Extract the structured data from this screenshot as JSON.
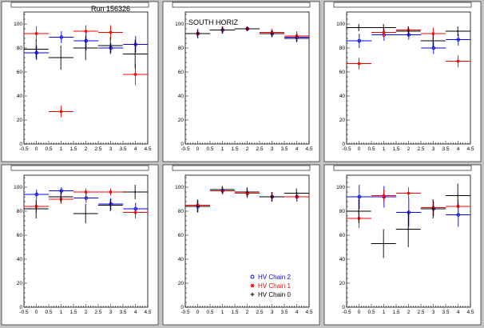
{
  "colors": {
    "chain2": "#0000ff",
    "chain1": "#ff0000",
    "chain0": "#000000",
    "pad": "#ffffff",
    "frame": "#c4c4c4"
  },
  "legend": [
    {
      "label": "HV Chain 2",
      "color": "#0000ff",
      "marker": "circle"
    },
    {
      "label": "HV Chain 1",
      "color": "#ff0000",
      "marker": "star"
    },
    {
      "label": "HV Chain 0",
      "color": "#000000",
      "marker": "plus"
    }
  ],
  "chart_data": [
    {
      "type": "scatter",
      "title": "",
      "annotation": "Run 156326",
      "xlim": [
        -0.5,
        4.5
      ],
      "ylim": [
        0,
        110
      ],
      "xticks": [
        "-0.5",
        "0",
        "0.5",
        "1",
        "1.5",
        "2",
        "2.5",
        "3",
        "3.5",
        "4",
        "4.5"
      ],
      "yticks": [
        "0",
        "20",
        "40",
        "60",
        "80",
        "100"
      ],
      "series": [
        {
          "name": "HV Chain 2",
          "x": [
            0,
            1,
            2,
            3,
            4
          ],
          "y": [
            76,
            89,
            86,
            80,
            83
          ],
          "yerr": [
            6,
            5,
            8,
            4,
            7
          ]
        },
        {
          "name": "HV Chain 1",
          "x": [
            0,
            1,
            2,
            3,
            4
          ],
          "y": [
            92,
            27,
            94,
            93,
            58
          ],
          "yerr": [
            6,
            5,
            5,
            6,
            9
          ]
        },
        {
          "name": "HV Chain 0",
          "x": [
            0,
            1,
            2,
            3,
            4
          ],
          "y": [
            79,
            72,
            80,
            82,
            75
          ],
          "yerr": [
            8,
            10,
            10,
            7,
            12
          ]
        }
      ]
    },
    {
      "type": "scatter",
      "title": "",
      "annotation": "SOUTH HORIZ",
      "xlim": [
        -0.5,
        4.5
      ],
      "ylim": [
        0,
        110
      ],
      "xticks": [
        "-0.5",
        "0",
        "0.5",
        "1",
        "1.5",
        "2",
        "2.5",
        "3",
        "3.5",
        "4",
        "4.5"
      ],
      "yticks": [
        "0",
        "20",
        "40",
        "60",
        "80",
        "100"
      ],
      "series": [
        {
          "name": "HV Chain 2",
          "x": [
            0,
            1,
            2,
            3,
            4
          ],
          "y": [
            92,
            95,
            96,
            92,
            89
          ],
          "yerr": [
            4,
            3,
            2,
            3,
            4
          ]
        },
        {
          "name": "HV Chain 1",
          "x": [
            0,
            1,
            2,
            3,
            4
          ],
          "y": [
            92,
            95,
            96,
            93,
            90
          ],
          "yerr": [
            4,
            3,
            2,
            3,
            4
          ]
        },
        {
          "name": "HV Chain 0",
          "x": [
            0,
            1,
            2,
            3,
            4
          ],
          "y": [
            92,
            95,
            96,
            92,
            88
          ],
          "yerr": [
            3,
            3,
            2,
            3,
            3
          ]
        }
      ]
    },
    {
      "type": "scatter",
      "title": "",
      "annotation": "",
      "xlim": [
        -0.5,
        4.5
      ],
      "ylim": [
        0,
        110
      ],
      "xticks": [
        "-0.5",
        "0",
        "0.5",
        "1",
        "1.5",
        "2",
        "2.5",
        "3",
        "3.5",
        "4",
        "4.5"
      ],
      "yticks": [
        "0",
        "20",
        "40",
        "60",
        "80",
        "100"
      ],
      "series": [
        {
          "name": "HV Chain 2",
          "x": [
            0,
            1,
            2,
            3,
            4
          ],
          "y": [
            86,
            91,
            91,
            80,
            87
          ],
          "yerr": [
            6,
            5,
            4,
            5,
            5
          ]
        },
        {
          "name": "HV Chain 1",
          "x": [
            0,
            1,
            2,
            3,
            4
          ],
          "y": [
            67,
            93,
            95,
            92,
            69
          ],
          "yerr": [
            5,
            4,
            3,
            5,
            5
          ]
        },
        {
          "name": "HV Chain 0",
          "x": [
            0,
            1,
            2,
            3,
            4
          ],
          "y": [
            97,
            97,
            94,
            86,
            94
          ],
          "yerr": [
            3,
            3,
            4,
            5,
            4
          ]
        }
      ]
    },
    {
      "type": "scatter",
      "title": "",
      "annotation": "",
      "xlim": [
        -0.5,
        4.5
      ],
      "ylim": [
        0,
        110
      ],
      "xticks": [
        "-0.5",
        "0",
        "0.5",
        "1",
        "1.5",
        "2",
        "2.5",
        "3",
        "3.5",
        "4",
        "4.5"
      ],
      "yticks": [
        "0",
        "20",
        "40",
        "60",
        "80",
        "100"
      ],
      "series": [
        {
          "name": "HV Chain 2",
          "x": [
            0,
            1,
            2,
            3,
            4
          ],
          "y": [
            94,
            97,
            91,
            86,
            82
          ],
          "yerr": [
            4,
            3,
            4,
            5,
            5
          ]
        },
        {
          "name": "HV Chain 1",
          "x": [
            0,
            1,
            2,
            3,
            4
          ],
          "y": [
            84,
            90,
            96,
            96,
            79
          ],
          "yerr": [
            5,
            4,
            3,
            3,
            5
          ]
        },
        {
          "name": "HV Chain 0",
          "x": [
            0,
            1,
            2,
            3,
            4
          ],
          "y": [
            82,
            92,
            78,
            85,
            96
          ],
          "yerr": [
            8,
            5,
            8,
            5,
            6
          ]
        }
      ]
    },
    {
      "type": "scatter",
      "title": "",
      "annotation": "",
      "xlim": [
        -0.5,
        4.5
      ],
      "ylim": [
        0,
        110
      ],
      "xticks": [
        "-0.5",
        "0",
        "0.5",
        "1",
        "1.5",
        "2",
        "2.5",
        "3",
        "3.5",
        "4",
        "4.5"
      ],
      "yticks": [
        "0",
        "20",
        "40",
        "60",
        "80",
        "100"
      ],
      "series": [
        {
          "name": "HV Chain 2",
          "x": [
            0,
            1,
            2,
            3,
            4
          ],
          "y": [
            84,
            97,
            95,
            92,
            92
          ],
          "yerr": [
            5,
            3,
            3,
            4,
            4
          ]
        },
        {
          "name": "HV Chain 1",
          "x": [
            0,
            1,
            2,
            3,
            4
          ],
          "y": [
            85,
            97,
            95,
            92,
            92
          ],
          "yerr": [
            5,
            3,
            4,
            4,
            4
          ]
        },
        {
          "name": "HV Chain 0",
          "x": [
            0,
            1,
            2,
            3,
            4
          ],
          "y": [
            84,
            98,
            96,
            92,
            95
          ],
          "yerr": [
            5,
            3,
            4,
            4,
            4
          ]
        }
      ]
    },
    {
      "type": "scatter",
      "title": "",
      "annotation": "",
      "xlim": [
        -0.5,
        4.5
      ],
      "ylim": [
        0,
        110
      ],
      "xticks": [
        "-0.5",
        "0",
        "0.5",
        "1",
        "1.5",
        "2",
        "2.5",
        "3",
        "3.5",
        "4",
        "4.5"
      ],
      "yticks": [
        "0",
        "20",
        "40",
        "60",
        "80",
        "100"
      ],
      "series": [
        {
          "name": "HV Chain 2",
          "x": [
            0,
            1,
            2,
            3,
            4
          ],
          "y": [
            92,
            92,
            79,
            82,
            77
          ],
          "yerr": [
            10,
            9,
            12,
            6,
            10
          ]
        },
        {
          "name": "HV Chain 1",
          "x": [
            0,
            1,
            2,
            3,
            4
          ],
          "y": [
            74,
            93,
            95,
            83,
            84
          ],
          "yerr": [
            8,
            5,
            5,
            6,
            6
          ]
        },
        {
          "name": "HV Chain 0",
          "x": [
            0,
            1,
            2,
            3,
            4
          ],
          "y": [
            80,
            53,
            65,
            82,
            93
          ],
          "yerr": [
            10,
            12,
            15,
            8,
            10
          ]
        }
      ]
    }
  ]
}
